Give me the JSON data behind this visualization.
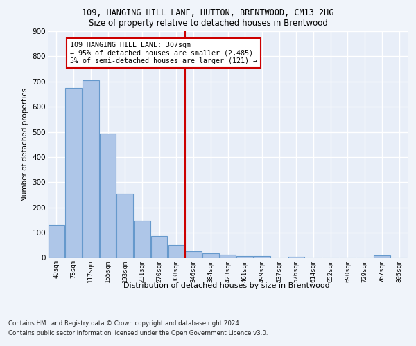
{
  "title_line1": "109, HANGING HILL LANE, HUTTON, BRENTWOOD, CM13 2HG",
  "title_line2": "Size of property relative to detached houses in Brentwood",
  "xlabel": "Distribution of detached houses by size in Brentwood",
  "ylabel": "Number of detached properties",
  "footer_line1": "Contains HM Land Registry data © Crown copyright and database right 2024.",
  "footer_line2": "Contains public sector information licensed under the Open Government Licence v3.0.",
  "bin_labels": [
    "40sqm",
    "78sqm",
    "117sqm",
    "155sqm",
    "193sqm",
    "231sqm",
    "270sqm",
    "308sqm",
    "346sqm",
    "384sqm",
    "423sqm",
    "461sqm",
    "499sqm",
    "537sqm",
    "576sqm",
    "614sqm",
    "652sqm",
    "690sqm",
    "729sqm",
    "767sqm",
    "805sqm"
  ],
  "bar_values": [
    130,
    675,
    705,
    492,
    253,
    148,
    87,
    52,
    25,
    18,
    13,
    8,
    8,
    0,
    4,
    0,
    0,
    0,
    0,
    10,
    0
  ],
  "bar_color": "#aec6e8",
  "bar_edge_color": "#6699cc",
  "annotation_text": "109 HANGING HILL LANE: 307sqm\n← 95% of detached houses are smaller (2,485)\n5% of semi-detached houses are larger (121) →",
  "annotation_box_color": "#ffffff",
  "annotation_box_edge_color": "#cc0000",
  "vline_color": "#cc0000",
  "background_color": "#e8eef8",
  "grid_color": "#ffffff",
  "ylim": [
    0,
    900
  ],
  "vline_bin_index": 7,
  "n_bins": 21
}
